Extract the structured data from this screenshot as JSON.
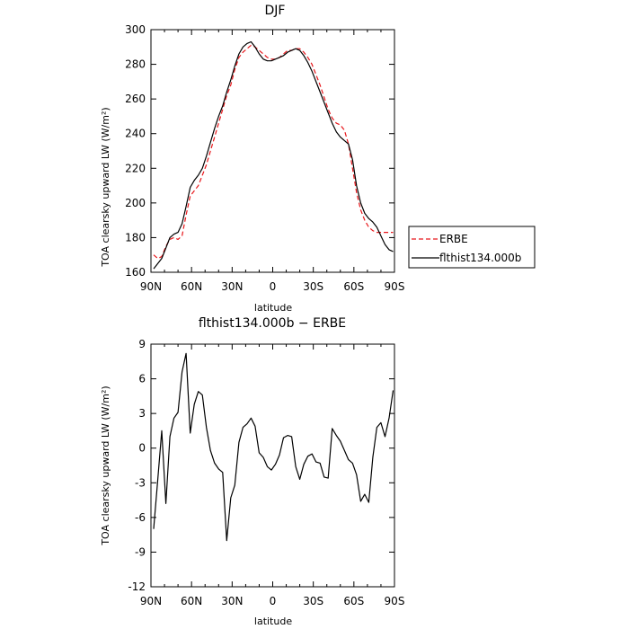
{
  "chart_data": [
    {
      "type": "line",
      "title": "DJF",
      "xlabel": "latitude",
      "ylabel": "TOA clearsky upward LW (W/m²)",
      "x_ticks": [
        "90N",
        "60N",
        "30N",
        "0",
        "30S",
        "60S",
        "90S"
      ],
      "x_tick_values": [
        90,
        60,
        30,
        0,
        -30,
        -60,
        -90
      ],
      "xlim": [
        90,
        -90
      ],
      "ylim": [
        160,
        300
      ],
      "y_ticks": [
        160,
        180,
        200,
        220,
        240,
        260,
        280,
        300
      ],
      "legend_position": "right",
      "x": [
        88,
        85,
        82,
        79,
        76,
        73,
        70,
        67,
        64,
        61,
        58,
        55,
        52,
        49,
        46,
        43,
        40,
        37,
        34,
        31,
        28,
        25,
        22,
        19,
        16,
        13,
        10,
        7,
        4,
        1,
        -2,
        -5,
        -8,
        -11,
        -14,
        -17,
        -20,
        -23,
        -26,
        -29,
        -32,
        -35,
        -38,
        -41,
        -44,
        -47,
        -50,
        -53,
        -56,
        -59,
        -62,
        -65,
        -68,
        -71,
        -74,
        -77,
        -80,
        -83,
        -86,
        -89
      ],
      "series": [
        {
          "name": "ERBE",
          "color": "#e8161a",
          "dash": "dashed",
          "values": [
            170,
            168,
            169,
            175,
            179,
            180,
            179,
            181,
            193,
            204,
            207,
            210,
            216,
            222,
            230,
            238,
            246,
            254,
            262,
            268,
            277,
            284,
            287,
            289,
            291,
            290,
            288,
            286,
            284,
            283,
            283,
            284,
            286,
            288,
            288,
            289,
            289,
            287,
            284,
            280,
            274,
            268,
            261,
            254,
            249,
            246,
            245,
            242,
            234,
            220,
            206,
            196,
            190,
            186,
            184,
            183,
            183,
            183,
            183,
            183
          ]
        },
        {
          "name": "flthist134.000b",
          "color": "#000000",
          "dash": "solid",
          "values": [
            162,
            165,
            168,
            174,
            180,
            182,
            183,
            188,
            198,
            209,
            213,
            216,
            220,
            227,
            235,
            243,
            250,
            256,
            264,
            271,
            279,
            286,
            290,
            292,
            293,
            290,
            286,
            283,
            282,
            282,
            283,
            284,
            285,
            287,
            288,
            289,
            288,
            285,
            281,
            276,
            270,
            264,
            258,
            252,
            246,
            241,
            238,
            236,
            234,
            225,
            210,
            200,
            194,
            191,
            189,
            186,
            181,
            176,
            173,
            172
          ]
        }
      ]
    },
    {
      "type": "line",
      "title": "flthist134.000b − ERBE",
      "xlabel": "latitude",
      "ylabel": "TOA clearsky upward LW (W/m²)",
      "x_ticks": [
        "90N",
        "60N",
        "30N",
        "0",
        "30S",
        "60S",
        "90S"
      ],
      "x_tick_values": [
        90,
        60,
        30,
        0,
        -30,
        -60,
        -90
      ],
      "xlim": [
        90,
        -90
      ],
      "ylim": [
        -12,
        9
      ],
      "y_ticks": [
        -12,
        -9,
        -6,
        -3,
        0,
        3,
        6,
        9
      ],
      "x": [
        88,
        85,
        82,
        79,
        76,
        73,
        70,
        67,
        64,
        61,
        58,
        55,
        52,
        49,
        46,
        43,
        40,
        37,
        34,
        31,
        28,
        25,
        22,
        19,
        16,
        13,
        10,
        7,
        4,
        1,
        -2,
        -5,
        -8,
        -11,
        -14,
        -17,
        -20,
        -23,
        -26,
        -29,
        -32,
        -35,
        -38,
        -41,
        -44,
        -47,
        -50,
        -53,
        -56,
        -59,
        -62,
        -65,
        -68,
        -71,
        -74,
        -77,
        -80,
        -83,
        -86,
        -89
      ],
      "series": [
        {
          "color": "#000000",
          "dash": "solid",
          "values": [
            -7.0,
            -2.8,
            1.5,
            -4.8,
            1.0,
            2.6,
            3.1,
            6.6,
            8.2,
            1.3,
            3.8,
            4.9,
            4.6,
            1.8,
            -0.2,
            -1.3,
            -1.8,
            -2.1,
            -8.0,
            -4.3,
            -3.2,
            0.5,
            1.8,
            2.1,
            2.6,
            1.9,
            -0.4,
            -0.8,
            -1.6,
            -1.9,
            -1.4,
            -0.6,
            0.9,
            1.1,
            1.0,
            -1.6,
            -2.7,
            -1.4,
            -0.7,
            -0.5,
            -1.2,
            -1.3,
            -2.5,
            -2.6,
            1.7,
            1.1,
            0.6,
            -0.2,
            -1.0,
            -1.3,
            -2.3,
            -4.6,
            -4.0,
            -4.7,
            -0.8,
            1.8,
            2.2,
            1.0,
            2.6,
            5.0
          ]
        }
      ]
    }
  ]
}
